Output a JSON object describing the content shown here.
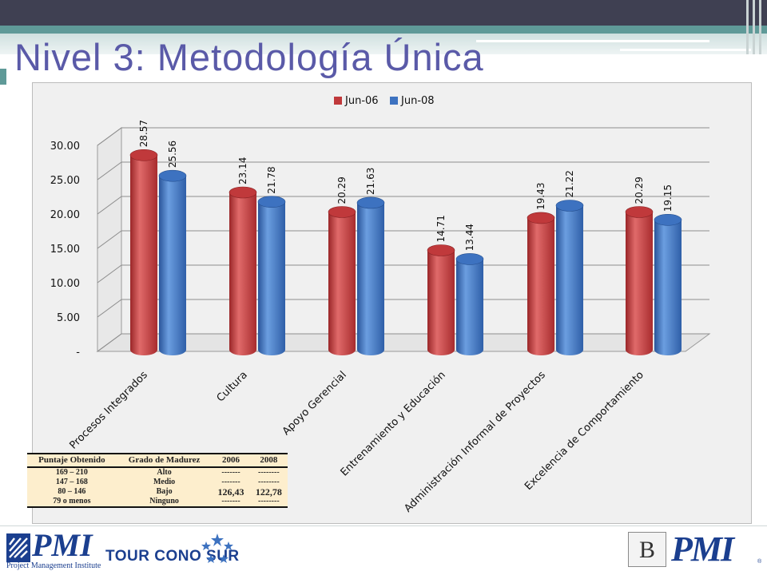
{
  "slide": {
    "title": "Nivel 3: Metodología Única"
  },
  "chart_data": {
    "type": "bar",
    "categories": [
      "Procesos Integrados",
      "Cultura",
      "Apoyo Gerencial",
      "Entrenamiento y Educación",
      "Administración Informal de Proyectos",
      "Excelencia de Comportamiento"
    ],
    "series": [
      {
        "name": "Jun-06",
        "values": [
          28.57,
          23.14,
          20.29,
          14.71,
          19.43,
          20.29
        ],
        "labels": [
          "28.57",
          "23.14",
          "20.29",
          "14.71",
          "19.43",
          "20.29"
        ],
        "color": "#c0393b"
      },
      {
        "name": "Jun-08",
        "values": [
          25.56,
          21.78,
          21.63,
          13.44,
          21.22,
          19.15
        ],
        "labels": [
          "25.56",
          "21.78",
          "21.63",
          "13.44",
          "21.22",
          "19.15"
        ],
        "color": "#3d72c0"
      }
    ],
    "yticks": [
      "-",
      "5.00",
      "10.00",
      "15.00",
      "20.00",
      "25.00",
      "30.00"
    ],
    "ylim": [
      0,
      30
    ],
    "legend": "top",
    "grid": true
  },
  "score_table": {
    "headers": [
      "Puntaje Obtenido",
      "Grado de Madurez",
      "2006",
      "2008"
    ],
    "rows": [
      [
        "169 – 210",
        "Alto",
        "-------",
        "--------"
      ],
      [
        "147 – 168",
        "Medio",
        "-------",
        "--------"
      ],
      [
        "80 – 146",
        "Bajo",
        "126,43",
        "122,78"
      ],
      [
        "79 o menos",
        "Ninguno",
        "-------",
        "--------"
      ]
    ]
  },
  "footer": {
    "left_logo_text": "PMI",
    "left_logo_subtitle": "Project Management Institute",
    "tour_label": "TOUR CONO SUR",
    "right_box_letter": "B",
    "right_logo_text": "PMI"
  }
}
